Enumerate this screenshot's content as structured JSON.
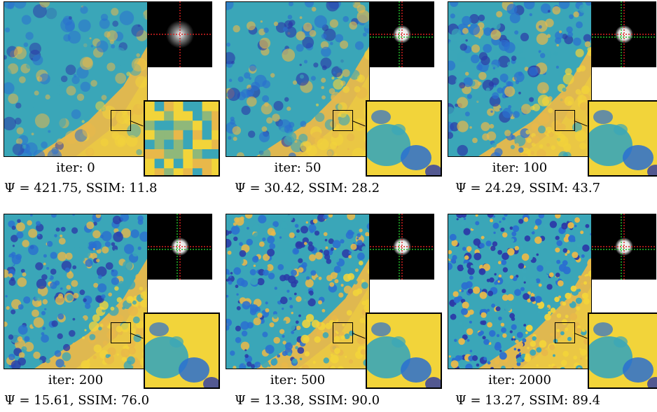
{
  "colors": {
    "sand": "#e8b84a",
    "yellow": "#f2d43a",
    "teal": "#3aa6b8",
    "blue": "#2a6fd0",
    "navy": "#2b3aa8",
    "red_line": "#d62020",
    "green_line": "#22c02a"
  },
  "panels": [
    {
      "iter_label": "iter: 0",
      "metric_label": "Ψ = 421.75, SSIM: 11.8"
    },
    {
      "iter_label": "iter: 50",
      "metric_label": "Ψ = 30.42, SSIM: 28.2"
    },
    {
      "iter_label": "iter: 100",
      "metric_label": "Ψ = 24.29, SSIM: 43.7"
    },
    {
      "iter_label": "iter: 200",
      "metric_label": "Ψ = 15.61, SSIM: 76.0"
    },
    {
      "iter_label": "iter: 500",
      "metric_label": "Ψ = 13.38, SSIM: 90.0"
    },
    {
      "iter_label": "iter: 2000",
      "metric_label": "Ψ = 13.27, SSIM: 89.4"
    }
  ]
}
